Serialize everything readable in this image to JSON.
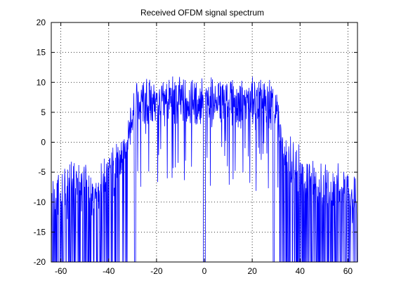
{
  "chart_data": {
    "type": "line",
    "title": "Received OFDM signal spectrum",
    "xlabel": "",
    "ylabel": "",
    "xlim": [
      -64,
      64
    ],
    "ylim": [
      -20,
      20
    ],
    "xticks": [
      -60,
      -40,
      -20,
      0,
      20,
      40,
      60
    ],
    "yticks": [
      -20,
      -15,
      -10,
      -5,
      0,
      5,
      10,
      15,
      20
    ],
    "grid": true,
    "legend": "none",
    "series": [
      {
        "color": "#0000ff",
        "description_profile": {
          "samples_per_unit": 8,
          "points": [
            [
              -64,
              -7.8
            ],
            [
              -62,
              -7.5
            ],
            [
              -60,
              -7.4
            ],
            [
              -58,
              -7.3
            ],
            [
              -56,
              -7.0
            ],
            [
              -54,
              -6.8
            ],
            [
              -52,
              -7.0
            ],
            [
              -50,
              -7.4
            ],
            [
              -48,
              -8.0
            ],
            [
              -46,
              -7.5
            ],
            [
              -44,
              -6.7
            ],
            [
              -42,
              -6.2
            ],
            [
              -40,
              -5.4
            ],
            [
              -38,
              -4.7
            ],
            [
              -36,
              -3.7
            ],
            [
              -34,
              -2.3
            ],
            [
              -33,
              -1.0
            ],
            [
              -32,
              1.0
            ],
            [
              -31,
              3.0
            ],
            [
              -30,
              5.5
            ],
            [
              -28,
              6.2
            ],
            [
              -24,
              6.4
            ],
            [
              -20,
              6.5
            ],
            [
              -16,
              6.6
            ],
            [
              -12,
              6.7
            ],
            [
              -8,
              6.6
            ],
            [
              -4,
              6.5
            ],
            [
              0,
              6.6
            ],
            [
              4,
              6.7
            ],
            [
              8,
              6.6
            ],
            [
              12,
              6.5
            ],
            [
              16,
              6.6
            ],
            [
              20,
              6.5
            ],
            [
              24,
              6.4
            ],
            [
              28,
              6.2
            ],
            [
              30,
              5.6
            ],
            [
              31,
              3.0
            ],
            [
              32,
              1.0
            ],
            [
              33,
              -1.0
            ],
            [
              34,
              -2.2
            ],
            [
              36,
              -3.6
            ],
            [
              38,
              -4.6
            ],
            [
              40,
              -5.3
            ],
            [
              42,
              -6.0
            ],
            [
              44,
              -6.5
            ],
            [
              46,
              -6.9
            ],
            [
              48,
              -7.1
            ],
            [
              50,
              -7.3
            ],
            [
              52,
              -7.5
            ],
            [
              54,
              -7.6
            ],
            [
              56,
              -7.7
            ],
            [
              58,
              -7.8
            ],
            [
              60,
              -7.8
            ],
            [
              62,
              -7.9
            ],
            [
              64,
              -8.0
            ]
          ]
        }
      }
    ]
  }
}
